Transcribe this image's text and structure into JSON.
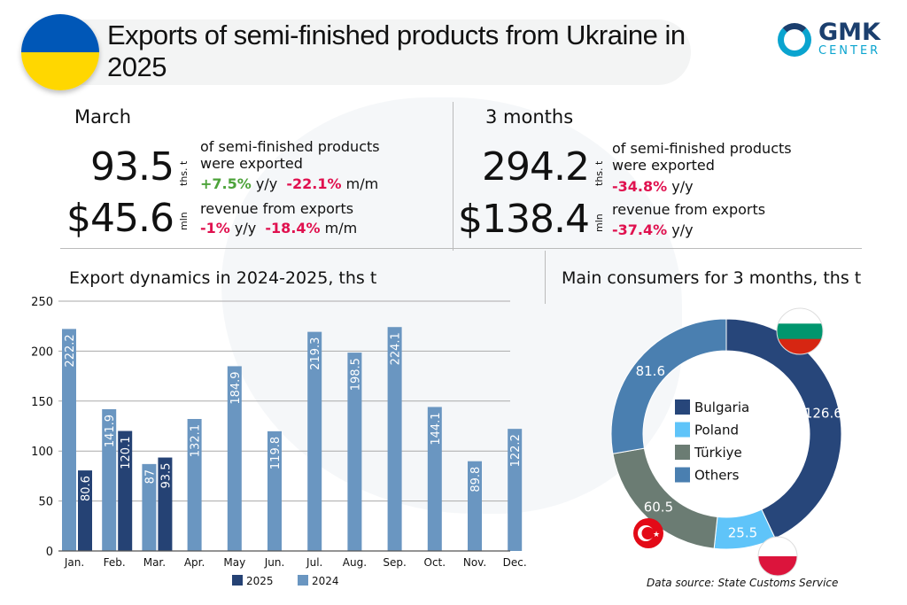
{
  "header": {
    "title": "Exports of semi-finished products from Ukraine in 2025",
    "logo_main": "GMK",
    "logo_sub": "CENTER"
  },
  "march": {
    "label": "March",
    "volume": "93.5",
    "volume_unit": "ths. t",
    "volume_desc": "of semi-finished products were exported",
    "volume_yy": "+7.5%",
    "yy": "y/y",
    "volume_mm": "-22.1%",
    "mm": "m/m",
    "revenue": "$45.6",
    "revenue_unit": "mln",
    "revenue_desc": "revenue from exports",
    "revenue_yy": "-1%",
    "revenue_mm": "-18.4%"
  },
  "three_months": {
    "label": "3 months",
    "volume": "294.2",
    "volume_unit": "ths. t",
    "volume_desc": "of semi-finished products were exported",
    "volume_yy": "-34.8%",
    "yy": "y/y",
    "revenue": "$138.4",
    "revenue_unit": "mln",
    "revenue_desc": "revenue from exports",
    "revenue_yy": "-37.4%"
  },
  "chart_data": [
    {
      "type": "bar",
      "title": "Export dynamics in 2024-2025, ths t",
      "categories": [
        "Jan.",
        "Feb.",
        "Mar.",
        "Apr.",
        "May",
        "Jun.",
        "Jul.",
        "Aug.",
        "Sep.",
        "Oct.",
        "Nov.",
        "Dec."
      ],
      "series": [
        {
          "name": "2024",
          "color": "#6a96c1",
          "values": [
            222.2,
            141.9,
            87,
            132.1,
            184.9,
            119.8,
            219.3,
            198.5,
            224.1,
            144.1,
            89.8,
            122.2
          ]
        },
        {
          "name": "2025",
          "color": "#254274",
          "values": [
            80.6,
            120.1,
            93.5,
            null,
            null,
            null,
            null,
            null,
            null,
            null,
            null,
            null
          ]
        }
      ],
      "yticks": [
        0,
        50,
        100,
        150,
        200,
        250
      ],
      "ylim": [
        0,
        250
      ],
      "grid": true,
      "legend": "bottom"
    },
    {
      "type": "pie",
      "title": "Main consumers for 3 months, ths t",
      "categories": [
        "Bulgaria",
        "Poland",
        "Türkiye",
        "Others"
      ],
      "values": [
        126.6,
        25.5,
        60.5,
        81.6
      ],
      "colors": [
        "#27467a",
        "#5fc4f9",
        "#6b7c73",
        "#4a7fb0"
      ],
      "legend": "center"
    }
  ],
  "source": "Data source: State Customs Service",
  "colors": {
    "ua_blue": "#0057b7",
    "ua_yellow": "#ffd700"
  }
}
